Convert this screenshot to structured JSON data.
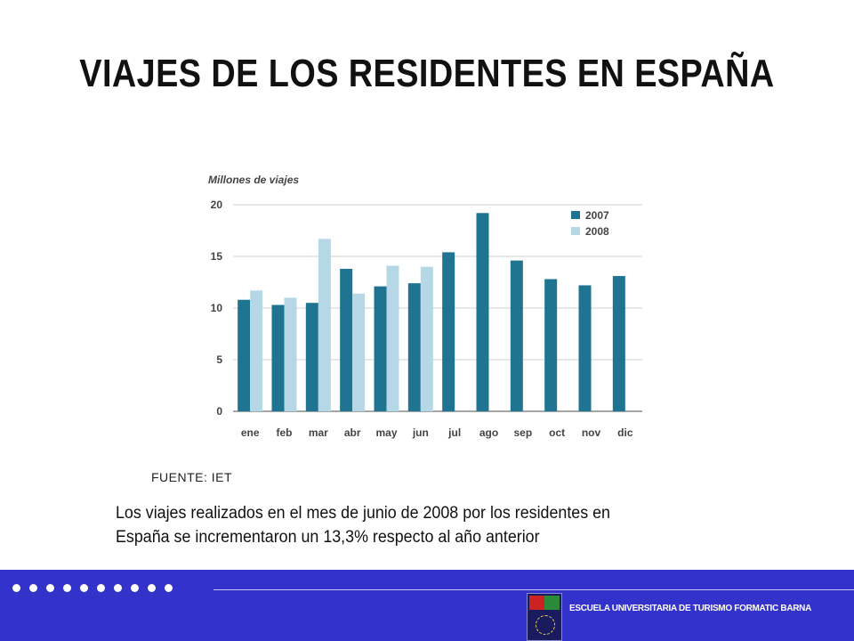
{
  "title": "VIAJES DE LOS RESIDENTES EN ESPAÑA",
  "source": "FUENTE: IET",
  "note": "Los viajes realizados en el mes de junio de 2008 por los residentes en España se incrementaron  un 13,3% respecto al año anterior",
  "footer": {
    "school": "ESCUELA UNIVERSITARIA DE TURISMO FORMATIC BARNA"
  },
  "chart_data": {
    "type": "bar",
    "ylabel": "Millones de viajes",
    "categories": [
      "ene",
      "feb",
      "mar",
      "abr",
      "may",
      "jun",
      "jul",
      "ago",
      "sep",
      "oct",
      "nov",
      "dic"
    ],
    "yticks": [
      0,
      5,
      10,
      15,
      20
    ],
    "ylim": [
      0,
      20
    ],
    "legend_position": "top-right",
    "series": [
      {
        "name": "2007",
        "color": "#1f7591",
        "values": [
          10.8,
          10.3,
          10.5,
          13.8,
          12.1,
          12.4,
          15.4,
          19.2,
          14.6,
          12.8,
          12.2,
          13.1
        ]
      },
      {
        "name": "2008",
        "color": "#b6d8e6",
        "values": [
          11.7,
          11.0,
          16.7,
          11.4,
          14.1,
          14.0,
          null,
          null,
          null,
          null,
          null,
          null
        ]
      }
    ]
  }
}
